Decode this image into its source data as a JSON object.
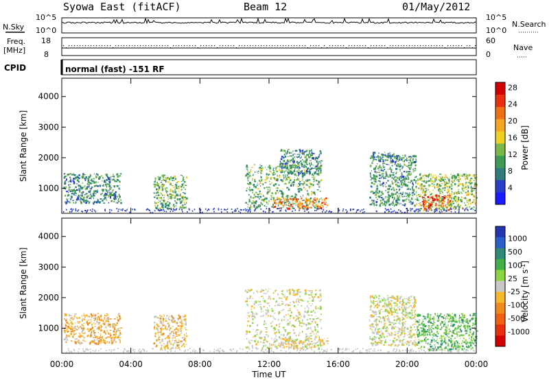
{
  "header": {
    "station": "Syowa East (fitACF)",
    "beam": "Beam 12",
    "date": "01/May/2012"
  },
  "top_panels": {
    "nsky_label": "N.Sky",
    "nsky_ticks": [
      "10^5",
      "10^0"
    ],
    "nsearch_label": "N.Search",
    "nsearch_ticks": [
      "10^5",
      "10^0"
    ],
    "freq_label": "Freq.",
    "freq_unit": "[MHz]",
    "freq_ticks": [
      "18",
      "8"
    ],
    "nave_label": "Nave",
    "nave_ticks": [
      "60",
      "0"
    ],
    "cpid_label": "CPID",
    "cpid_text": "normal (fast) -151 RF"
  },
  "colors": {
    "power_scale": [
      "#1a1aff",
      "#2a3fc8",
      "#2f7d7d",
      "#3d9b55",
      "#7ab84a",
      "#f0d020",
      "#f5a623",
      "#f07018",
      "#e83010",
      "#d40000"
    ],
    "velocity_scale": [
      "#2236b0",
      "#2a5ec8",
      "#2f8a7a",
      "#44b04a",
      "#8cd440",
      "#c8c8c8",
      "#f5b82a",
      "#f08a1a",
      "#f06010",
      "#e83010",
      "#d40000"
    ]
  },
  "chart_data": [
    {
      "type": "heatmap",
      "title": "",
      "xlabel": "Time UT",
      "ylabel": "Slant Range [km]",
      "x_ticks": [
        "00:00",
        "04:00",
        "08:00",
        "12:00",
        "16:00",
        "20:00",
        "00:00"
      ],
      "y_ticks": [
        "1000",
        "2000",
        "3000",
        "4000"
      ],
      "xlim": [
        0,
        24
      ],
      "ylim": [
        180,
        4600
      ],
      "colorbar_label": "Power [dB]",
      "colorbar_ticks": [
        "4",
        "8",
        "12",
        "16",
        "20",
        "24",
        "28"
      ],
      "colorbar_range": [
        0,
        30
      ],
      "regions": [
        {
          "t0": 0.1,
          "t1": 3.4,
          "r0": 520,
          "r1": 1500,
          "value": 9
        },
        {
          "t0": 5.3,
          "t1": 7.2,
          "r0": 350,
          "r1": 1450,
          "value": 12
        },
        {
          "t0": 10.6,
          "t1": 15.0,
          "r0": 350,
          "r1": 1800,
          "value": 11
        },
        {
          "t0": 12.6,
          "t1": 15.0,
          "r0": 1500,
          "r1": 2300,
          "value": 9
        },
        {
          "t0": 12.2,
          "t1": 15.4,
          "r0": 350,
          "r1": 700,
          "value": 22
        },
        {
          "t0": 17.8,
          "t1": 20.5,
          "r0": 450,
          "r1": 2100,
          "value": 10
        },
        {
          "t0": 18.0,
          "t1": 19.2,
          "r0": 1900,
          "r1": 2200,
          "value": 8
        },
        {
          "t0": 20.5,
          "t1": 24.0,
          "r0": 300,
          "r1": 1500,
          "value": 14
        },
        {
          "t0": 20.8,
          "t1": 22.5,
          "r0": 300,
          "r1": 800,
          "value": 24
        }
      ]
    },
    {
      "type": "heatmap",
      "title": "",
      "xlabel": "Time UT",
      "ylabel": "Slant Range [km]",
      "x_ticks": [
        "00:00",
        "04:00",
        "08:00",
        "12:00",
        "16:00",
        "20:00",
        "00:00"
      ],
      "y_ticks": [
        "1000",
        "2000",
        "3000",
        "4000"
      ],
      "xlim": [
        0,
        24
      ],
      "ylim": [
        180,
        4600
      ],
      "colorbar_label": "Velocity [m s",
      "colorbar_label_sup": "-1",
      "colorbar_label_end": "]",
      "colorbar_ticks": [
        "1000",
        "500",
        "100",
        "25",
        "-25",
        "-100",
        "-500",
        "-1000"
      ],
      "colorbar_range": [
        -1200,
        1200
      ],
      "regions": [
        {
          "t0": 0.1,
          "t1": 3.4,
          "r0": 520,
          "r1": 1500,
          "value": -250
        },
        {
          "t0": 5.3,
          "t1": 7.2,
          "r0": 350,
          "r1": 1450,
          "value": -200
        },
        {
          "t0": 10.6,
          "t1": 15.0,
          "r0": 350,
          "r1": 2300,
          "value": 0
        },
        {
          "t0": 12.2,
          "t1": 15.4,
          "r0": 350,
          "r1": 700,
          "value": -60
        },
        {
          "t0": 17.8,
          "t1": 20.5,
          "r0": 450,
          "r1": 2100,
          "value": 0
        },
        {
          "t0": 20.5,
          "t1": 24.0,
          "r0": 300,
          "r1": 1500,
          "value": 400
        }
      ]
    }
  ]
}
